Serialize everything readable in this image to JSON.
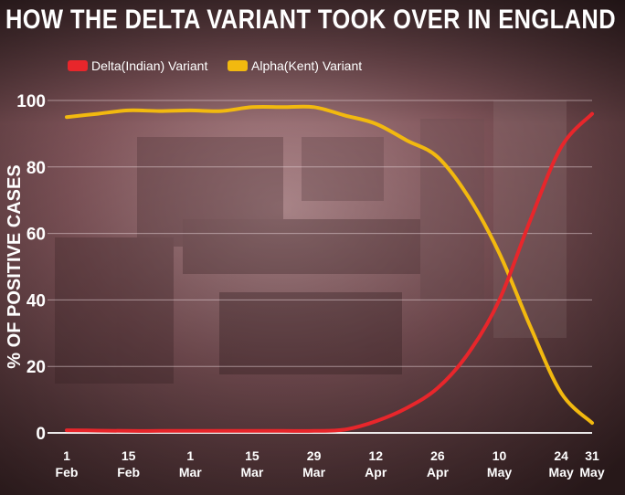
{
  "chart_data": {
    "type": "line",
    "title": "HOW THE DELTA VARIANT TOOK OVER IN ENGLAND",
    "ylabel": "% OF POSITIVE CASES",
    "xlabel": "",
    "ylim": [
      0,
      100
    ],
    "yticks": [
      0,
      20,
      40,
      60,
      80,
      100
    ],
    "grid": true,
    "legend_position": "top-left",
    "x_ticks": [
      {
        "x": 0,
        "line1": "1",
        "line2": "Feb"
      },
      {
        "x": 14,
        "line1": "15",
        "line2": "Feb"
      },
      {
        "x": 28,
        "line1": "1",
        "line2": "Mar"
      },
      {
        "x": 42,
        "line1": "15",
        "line2": "Mar"
      },
      {
        "x": 56,
        "line1": "29",
        "line2": "Mar"
      },
      {
        "x": 70,
        "line1": "12",
        "line2": "Apr"
      },
      {
        "x": 84,
        "line1": "26",
        "line2": "Apr"
      },
      {
        "x": 98,
        "line1": "10",
        "line2": "May"
      },
      {
        "x": 112,
        "line1": "24",
        "line2": "May"
      },
      {
        "x": 119,
        "line1": "31",
        "line2": "May"
      }
    ],
    "series": [
      {
        "name": "Delta(Indian) Variant",
        "color": "#e8262b",
        "x": [
          0,
          7,
          14,
          21,
          28,
          35,
          42,
          49,
          56,
          63,
          70,
          77,
          84,
          91,
          98,
          105,
          112,
          119
        ],
        "values": [
          0.8,
          0.7,
          0.6,
          0.6,
          0.6,
          0.6,
          0.6,
          0.6,
          0.6,
          1.0,
          3.5,
          7.5,
          13.5,
          24,
          40,
          64,
          86,
          96
        ]
      },
      {
        "name": "Alpha(Kent) Variant",
        "color": "#f2b90f",
        "x": [
          0,
          7,
          14,
          21,
          28,
          35,
          42,
          49,
          56,
          63,
          70,
          77,
          84,
          91,
          98,
          105,
          112,
          119
        ],
        "values": [
          95,
          96,
          97,
          96.8,
          97,
          96.8,
          98,
          98,
          98,
          95.5,
          93,
          88,
          83,
          71,
          54,
          32,
          12,
          3
        ]
      }
    ]
  }
}
